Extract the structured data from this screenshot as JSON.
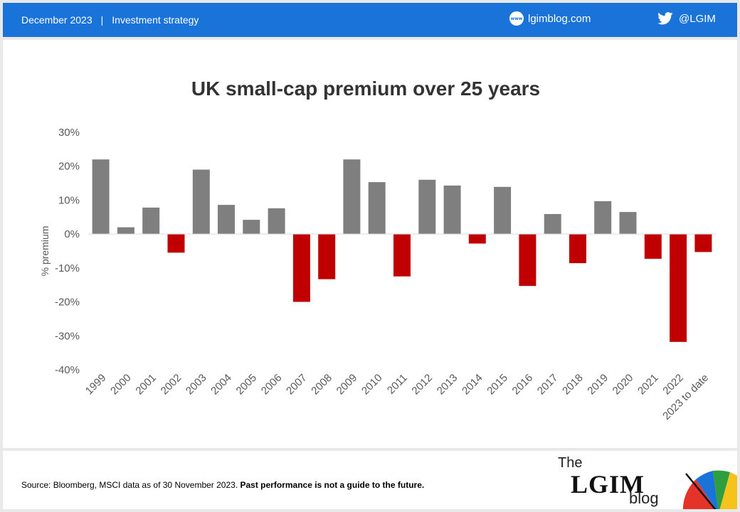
{
  "header": {
    "date": "December 2023",
    "separator": "|",
    "section": "Investment strategy",
    "website_icon": "www-globe-icon",
    "website": "lgimblog.com",
    "twitter_icon": "twitter-bird-icon",
    "twitter": "@LGIM"
  },
  "footer": {
    "source_plain": "Source: Bloomberg, MSCI data as of 30 November 2023. ",
    "source_bold": "Past performance is not a guide  to the future.",
    "logo_the": "The",
    "logo_lgim": "LGIM",
    "logo_blog": "blog"
  },
  "colors": {
    "positive": "#7f7f7f",
    "negative": "#c00000",
    "header": "#1a73d9"
  },
  "chart_data": {
    "type": "bar",
    "title": "UK small-cap premium over 25 years",
    "ylabel": "% premium",
    "xlabel": "",
    "ylim": [
      -40,
      30
    ],
    "yticks": [
      30,
      20,
      10,
      0,
      -10,
      -20,
      -30,
      -40
    ],
    "ytick_labels": [
      "30%",
      "20%",
      "10%",
      "0%",
      "-10%",
      "-20%",
      "-30%",
      "-40%"
    ],
    "categories": [
      "1999",
      "2000",
      "2001",
      "2002",
      "2003",
      "2004",
      "2005",
      "2006",
      "2007",
      "2008",
      "2009",
      "2010",
      "2011",
      "2012",
      "2013",
      "2014",
      "2015",
      "2016",
      "2017",
      "2018",
      "2019",
      "2020",
      "2021",
      "2022",
      "2023 to date"
    ],
    "values": [
      22,
      2,
      7.8,
      -5.5,
      19,
      8.6,
      4.2,
      7.6,
      -20,
      -13.3,
      22,
      15.3,
      -12.5,
      16,
      14.3,
      -2.8,
      13.9,
      -15.3,
      5.9,
      -8.6,
      9.7,
      6.5,
      -7.3,
      -31.8,
      -5.3
    ],
    "grid": false,
    "legend": "none"
  }
}
